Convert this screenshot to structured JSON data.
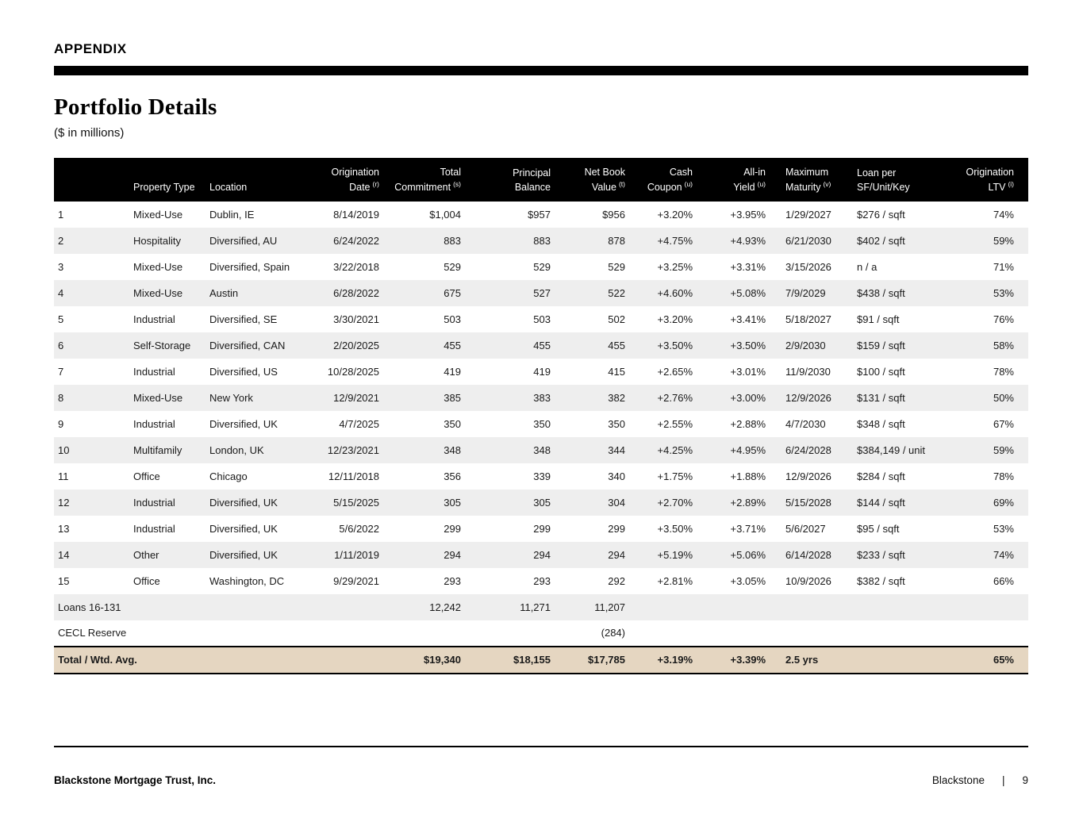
{
  "page": {
    "eyebrow": "APPENDIX",
    "title": "Portfolio Details",
    "subtitle": "($ in millions)"
  },
  "colors": {
    "header_bg": "#000000",
    "header_text": "#ffffff",
    "row_stripe": "#eeeeee",
    "total_row_bg": "#e5d6c1"
  },
  "table": {
    "columns": [
      {
        "id": "num",
        "line1": "",
        "line2": "",
        "sup": ""
      },
      {
        "id": "property-type",
        "line1": "",
        "line2": "Property Type",
        "sup": ""
      },
      {
        "id": "location",
        "line1": "",
        "line2": "Location",
        "sup": ""
      },
      {
        "id": "origination-date",
        "line1": "Origination",
        "line2": "Date",
        "sup": "(r)"
      },
      {
        "id": "total-commitment",
        "line1": "Total",
        "line2": "Commitment",
        "sup": "(s)"
      },
      {
        "id": "principal-balance",
        "line1": "Principal",
        "line2": "Balance",
        "sup": ""
      },
      {
        "id": "net-book-value",
        "line1": "Net Book",
        "line2": "Value",
        "sup": "(t)"
      },
      {
        "id": "cash-coupon",
        "line1": "Cash",
        "line2": "Coupon",
        "sup": "(u)"
      },
      {
        "id": "all-in-yield",
        "line1": "All-in",
        "line2": "Yield",
        "sup": "(u)"
      },
      {
        "id": "maximum-maturity",
        "line1": "Maximum",
        "line2": "Maturity",
        "sup": "(v)"
      },
      {
        "id": "loan-per",
        "line1": "Loan per",
        "line2": "SF/Unit/Key",
        "sup": ""
      },
      {
        "id": "origination-ltv",
        "line1": "Origination",
        "line2": "LTV",
        "sup": "(i)"
      }
    ],
    "rows": [
      [
        "1",
        "Mixed-Use",
        "Dublin, IE",
        "8/14/2019",
        "$1,004",
        "$957",
        "$956",
        "+3.20%",
        "+3.95%",
        "1/29/2027",
        "$276 / sqft",
        "74%"
      ],
      [
        "2",
        "Hospitality",
        "Diversified, AU",
        "6/24/2022",
        "883",
        "883",
        "878",
        "+4.75%",
        "+4.93%",
        "6/21/2030",
        "$402 / sqft",
        "59%"
      ],
      [
        "3",
        "Mixed-Use",
        "Diversified, Spain",
        "3/22/2018",
        "529",
        "529",
        "529",
        "+3.25%",
        "+3.31%",
        "3/15/2026",
        "n / a",
        "71%"
      ],
      [
        "4",
        "Mixed-Use",
        "Austin",
        "6/28/2022",
        "675",
        "527",
        "522",
        "+4.60%",
        "+5.08%",
        "7/9/2029",
        "$438 / sqft",
        "53%"
      ],
      [
        "5",
        "Industrial",
        "Diversified, SE",
        "3/30/2021",
        "503",
        "503",
        "502",
        "+3.20%",
        "+3.41%",
        "5/18/2027",
        "$91 / sqft",
        "76%"
      ],
      [
        "6",
        "Self-Storage",
        "Diversified, CAN",
        "2/20/2025",
        "455",
        "455",
        "455",
        "+3.50%",
        "+3.50%",
        "2/9/2030",
        "$159 / sqft",
        "58%"
      ],
      [
        "7",
        "Industrial",
        "Diversified, US",
        "10/28/2025",
        "419",
        "419",
        "415",
        "+2.65%",
        "+3.01%",
        "11/9/2030",
        "$100 / sqft",
        "78%"
      ],
      [
        "8",
        "Mixed-Use",
        "New York",
        "12/9/2021",
        "385",
        "383",
        "382",
        "+2.76%",
        "+3.00%",
        "12/9/2026",
        "$131 / sqft",
        "50%"
      ],
      [
        "9",
        "Industrial",
        "Diversified, UK",
        "4/7/2025",
        "350",
        "350",
        "350",
        "+2.55%",
        "+2.88%",
        "4/7/2030",
        "$348 / sqft",
        "67%"
      ],
      [
        "10",
        "Multifamily",
        "London, UK",
        "12/23/2021",
        "348",
        "348",
        "344",
        "+4.25%",
        "+4.95%",
        "6/24/2028",
        "$384,149 / unit",
        "59%"
      ],
      [
        "11",
        "Office",
        "Chicago",
        "12/11/2018",
        "356",
        "339",
        "340",
        "+1.75%",
        "+1.88%",
        "12/9/2026",
        "$284 / sqft",
        "78%"
      ],
      [
        "12",
        "Industrial",
        "Diversified, UK",
        "5/15/2025",
        "305",
        "305",
        "304",
        "+2.70%",
        "+2.89%",
        "5/15/2028",
        "$144 / sqft",
        "69%"
      ],
      [
        "13",
        "Industrial",
        "Diversified, UK",
        "5/6/2022",
        "299",
        "299",
        "299",
        "+3.50%",
        "+3.71%",
        "5/6/2027",
        "$95 / sqft",
        "53%"
      ],
      [
        "14",
        "Other",
        "Diversified, UK",
        "1/11/2019",
        "294",
        "294",
        "294",
        "+5.19%",
        "+5.06%",
        "6/14/2028",
        "$233 / sqft",
        "74%"
      ],
      [
        "15",
        "Office",
        "Washington, DC",
        "9/29/2021",
        "293",
        "293",
        "292",
        "+2.81%",
        "+3.05%",
        "10/9/2026",
        "$382 / sqft",
        "66%"
      ]
    ],
    "summary_rows": [
      [
        "Loans 16-131",
        "",
        "",
        "",
        "12,242",
        "11,271",
        "11,207",
        "",
        "",
        "",
        "",
        ""
      ],
      [
        "CECL Reserve",
        "",
        "",
        "",
        "",
        "",
        "(284)",
        "",
        "",
        "",
        "",
        ""
      ]
    ],
    "total_row": [
      "Total / Wtd. Avg.",
      "",
      "",
      "",
      "$19,340",
      "$18,155",
      "$17,785",
      "+3.19%",
      "+3.39%",
      "2.5 yrs",
      "",
      "65%"
    ]
  },
  "footer": {
    "company": "Blackstone Mortgage Trust, Inc.",
    "brand": "Blackstone",
    "divider": "|",
    "page_number": "9"
  }
}
